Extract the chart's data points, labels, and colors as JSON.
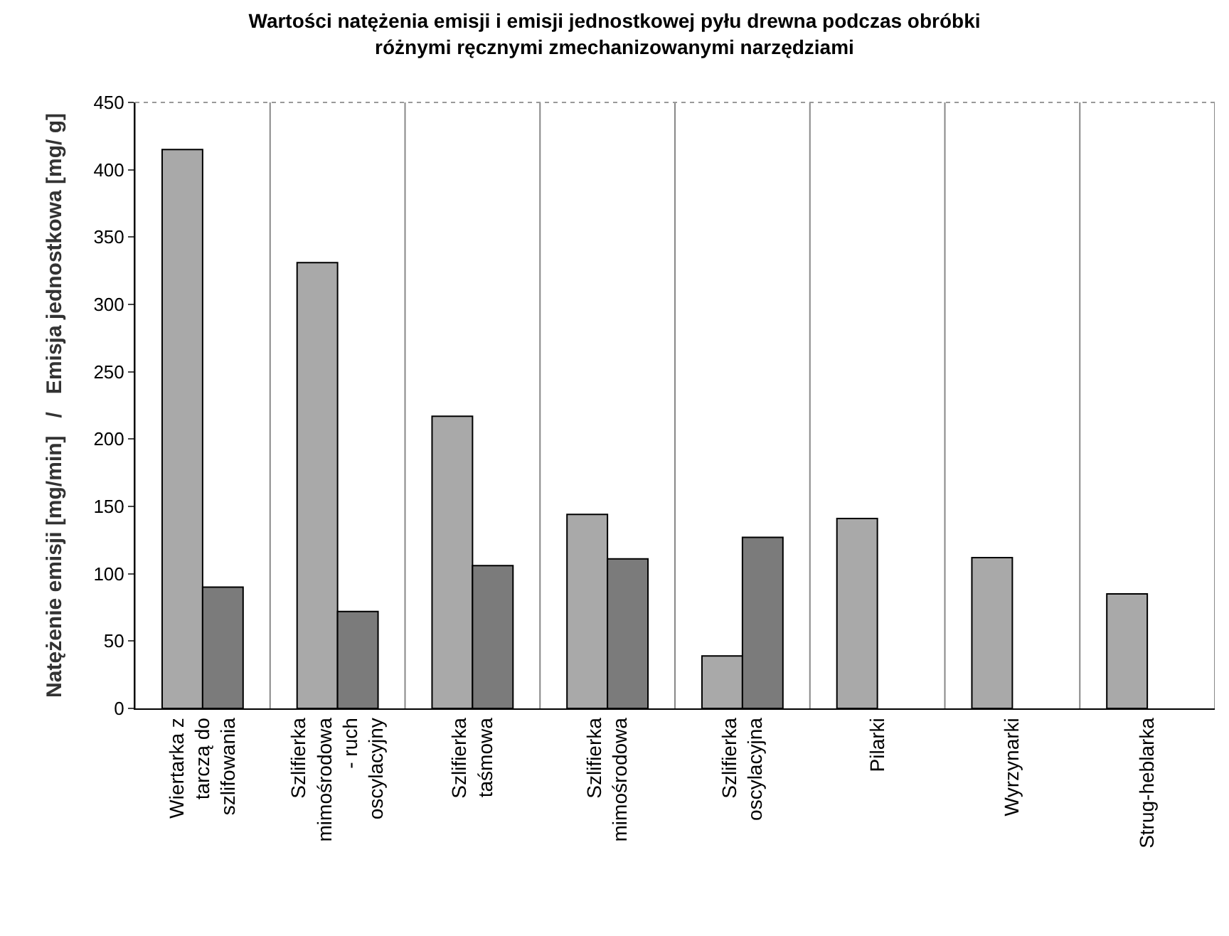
{
  "chart_data": {
    "type": "bar",
    "title": "Wartości natężenia emisji i emisji jednostkowej pyłu drewna podczas obróbki różnymi ręcznymi zmechanizowanymi narzędziami",
    "ylabel": "Natężenie emisji [mg/min]   /   Emisja jednostkowa [mg/ g]",
    "categories": [
      "Wiertarka z tarczą do szlifowania",
      "Szlifierka mimośrodowa - ruch oscylacyjny",
      "Szlifierka taśmowa",
      "Szlifierka mimośrodowa",
      "Szlifierka oscylacyjna",
      "Pilarki",
      "Wyrzynarki",
      "Strug-heblarka"
    ],
    "series": [
      {
        "color": "#a9a9a9",
        "values": [
          415,
          331,
          217,
          144,
          39,
          141,
          112,
          85
        ]
      },
      {
        "color": "#7b7b7b",
        "values": [
          90,
          72,
          106,
          111,
          127,
          null,
          null,
          null
        ]
      }
    ],
    "ylim": [
      0,
      450
    ],
    "yticks": [
      0,
      50,
      100,
      150,
      200,
      250,
      300,
      350,
      400,
      450
    ],
    "grid": "x"
  }
}
